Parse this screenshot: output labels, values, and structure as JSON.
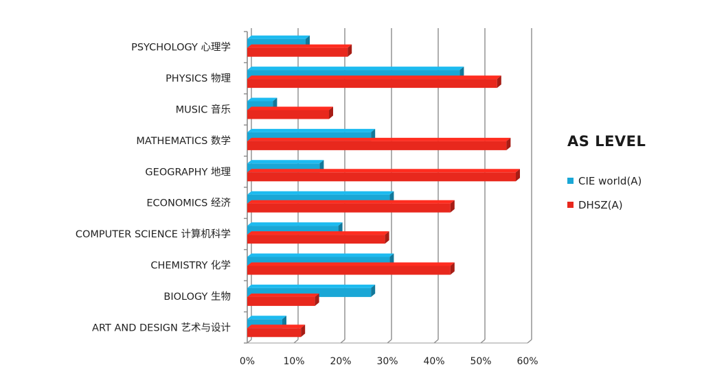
{
  "chart_data": {
    "type": "bar",
    "orientation": "horizontal",
    "title": "",
    "xlabel": "",
    "ylabel": "",
    "xlim": [
      0,
      60
    ],
    "x_ticks": [
      "0%",
      "10%",
      "20%",
      "30%",
      "40%",
      "50%",
      "60%"
    ],
    "grid": true,
    "legend_title": "AS LEVEL",
    "legend_position": "right",
    "categories": [
      "PSYCHOLOGY 心理学",
      "PHYSICS  物理",
      "MUSIC  音乐",
      "MATHEMATICS  数学",
      "GEOGRAPHY  地理",
      "ECONOMICS 经济",
      "COMPUTER SCIENCE  计算机科学",
      "CHEMISTRY  化学",
      "BIOLOGY 生物",
      "ART AND DESIGN  艺术与设计"
    ],
    "series": [
      {
        "name": "CIE world(A)",
        "color": "#1aa7d6",
        "values": [
          12.5,
          45.5,
          5.5,
          26.5,
          15.5,
          30.5,
          19.5,
          30.5,
          26.5,
          7.5
        ]
      },
      {
        "name": "DHSZ(A)",
        "color": "#e8281d",
        "values": [
          21.5,
          53.5,
          17.5,
          55.5,
          57.5,
          43.5,
          29.5,
          43.5,
          14.5,
          11.5
        ]
      }
    ]
  }
}
